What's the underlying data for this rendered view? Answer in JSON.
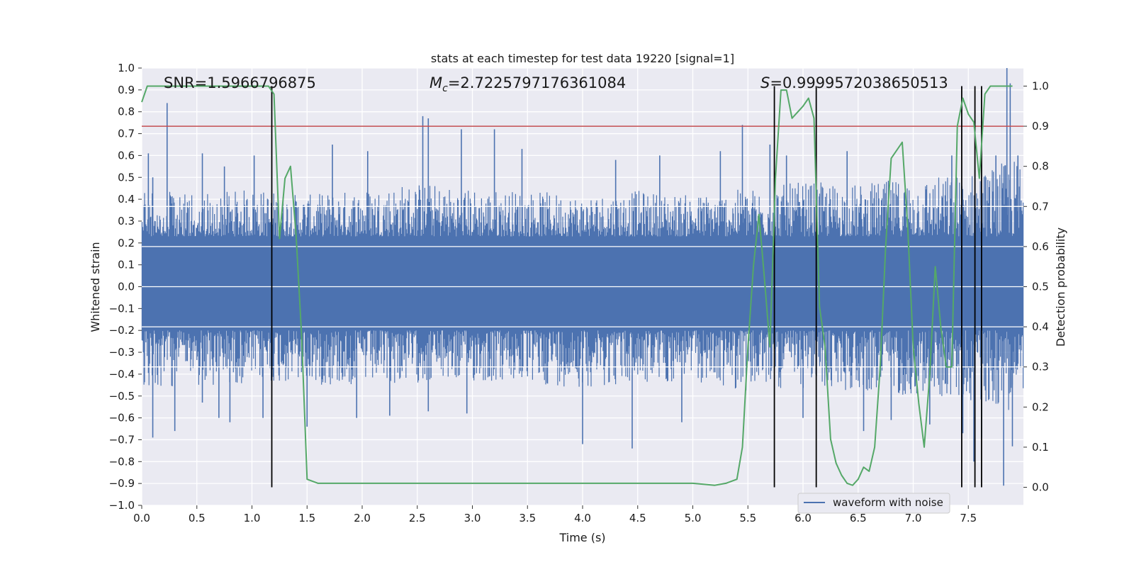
{
  "chart_data": {
    "type": "line",
    "title": "stats at each timestep for test data 19220 [signal=1]",
    "xlabel": "Time (s)",
    "ylabel": "Whitened strain",
    "y2label": "Detection probability",
    "xlim": [
      0.0,
      8.0
    ],
    "ylim": [
      -1.0,
      1.0
    ],
    "y2lim": [
      -0.045,
      1.045
    ],
    "x_ticks": [
      "0.0",
      "0.5",
      "1.0",
      "1.5",
      "2.0",
      "2.5",
      "3.0",
      "3.5",
      "4.0",
      "4.5",
      "5.0",
      "5.5",
      "6.0",
      "6.5",
      "7.0",
      "7.5"
    ],
    "y_ticks": [
      "-1.0",
      "-0.9",
      "-0.8",
      "-0.7",
      "-0.6",
      "-0.5",
      "-0.4",
      "-0.3",
      "-0.2",
      "-0.1",
      "0.0",
      "0.1",
      "0.2",
      "0.3",
      "0.4",
      "0.5",
      "0.6",
      "0.7",
      "0.8",
      "0.9",
      "1.0"
    ],
    "y2_ticks": [
      "0.0",
      "0.1",
      "0.2",
      "0.3",
      "0.4",
      "0.5",
      "0.6",
      "0.7",
      "0.8",
      "0.9",
      "1.0"
    ],
    "grid": true,
    "legend_placement": "lower-right",
    "annotations": {
      "snr": "SNR=1.5966796875",
      "mc_symbol": "M",
      "mc_sub": "c",
      "mc_value": "=2.7225797176361084",
      "s_symbol": "S",
      "s_value": "=0.9999572038650513"
    },
    "threshold": {
      "axis": "y2",
      "value": 0.9,
      "color": "#c44e52"
    },
    "vertical_lines": [
      1.18,
      5.74,
      6.12,
      7.44,
      7.56,
      7.62
    ],
    "vertical_line_color": "#000000",
    "series": [
      {
        "name": "waveform with noise",
        "axis": "y",
        "color": "#4c72b0",
        "kind": "noise-envelope",
        "envelope_x": [
          0.0,
          0.5,
          1.0,
          1.5,
          2.0,
          2.5,
          3.0,
          3.5,
          4.0,
          4.5,
          5.0,
          5.5,
          6.0,
          6.5,
          7.0,
          7.5,
          8.0
        ],
        "envelope_upper": [
          0.45,
          0.42,
          0.45,
          0.42,
          0.45,
          0.48,
          0.45,
          0.44,
          0.42,
          0.44,
          0.42,
          0.45,
          0.48,
          0.47,
          0.5,
          0.52,
          0.6
        ],
        "envelope_lower": [
          -0.45,
          -0.46,
          -0.44,
          -0.45,
          -0.46,
          -0.44,
          -0.44,
          -0.45,
          -0.46,
          -0.45,
          -0.44,
          -0.48,
          -0.47,
          -0.48,
          -0.5,
          -0.52,
          -0.58
        ],
        "spikes": [
          [
            0.06,
            0.61
          ],
          [
            0.1,
            -0.69
          ],
          [
            0.1,
            0.5
          ],
          [
            0.23,
            0.84
          ],
          [
            0.3,
            -0.66
          ],
          [
            0.55,
            -0.53
          ],
          [
            0.55,
            0.61
          ],
          [
            0.7,
            -0.6
          ],
          [
            0.75,
            0.55
          ],
          [
            0.8,
            -0.62
          ],
          [
            1.02,
            0.6
          ],
          [
            1.1,
            -0.6
          ],
          [
            1.5,
            -0.64
          ],
          [
            1.73,
            0.65
          ],
          [
            1.95,
            -0.6
          ],
          [
            2.05,
            0.62
          ],
          [
            2.25,
            -0.59
          ],
          [
            2.55,
            0.78
          ],
          [
            2.6,
            0.77
          ],
          [
            2.6,
            -0.57
          ],
          [
            2.9,
            0.72
          ],
          [
            2.95,
            -0.58
          ],
          [
            3.2,
            0.72
          ],
          [
            3.45,
            0.63
          ],
          [
            4.0,
            -0.72
          ],
          [
            4.45,
            -0.74
          ],
          [
            4.3,
            0.58
          ],
          [
            4.7,
            0.6
          ],
          [
            4.9,
            -0.62
          ],
          [
            5.25,
            0.62
          ],
          [
            5.45,
            0.74
          ],
          [
            5.7,
            0.65
          ],
          [
            5.85,
            0.6
          ],
          [
            6.0,
            -0.6
          ],
          [
            6.4,
            0.62
          ],
          [
            6.55,
            -0.66
          ],
          [
            6.8,
            -0.61
          ],
          [
            7.15,
            -0.63
          ],
          [
            7.35,
            0.6
          ],
          [
            7.45,
            -0.67
          ],
          [
            7.55,
            -0.8
          ],
          [
            7.62,
            -0.69
          ],
          [
            7.75,
            0.6
          ],
          [
            7.82,
            -0.91
          ],
          [
            7.85,
            1.0
          ],
          [
            7.88,
            0.93
          ],
          [
            7.9,
            -0.73
          ],
          [
            7.95,
            0.6
          ]
        ]
      },
      {
        "name": "",
        "axis": "y2",
        "color": "#55a868",
        "x": [
          0.0,
          0.05,
          0.1,
          0.2,
          0.3,
          0.4,
          0.5,
          0.6,
          0.7,
          0.8,
          0.9,
          1.0,
          1.05,
          1.1,
          1.15,
          1.2,
          1.25,
          1.3,
          1.35,
          1.4,
          1.45,
          1.5,
          1.6,
          1.8,
          2.0,
          2.2,
          2.5,
          3.0,
          3.5,
          4.0,
          4.5,
          5.0,
          5.2,
          5.3,
          5.4,
          5.45,
          5.5,
          5.55,
          5.6,
          5.65,
          5.7,
          5.75,
          5.8,
          5.85,
          5.9,
          6.0,
          6.05,
          6.1,
          6.15,
          6.2,
          6.25,
          6.3,
          6.35,
          6.4,
          6.45,
          6.5,
          6.55,
          6.6,
          6.65,
          6.7,
          6.75,
          6.8,
          6.9,
          6.95,
          7.0,
          7.05,
          7.1,
          7.15,
          7.2,
          7.25,
          7.3,
          7.35,
          7.4,
          7.45,
          7.5,
          7.55,
          7.6,
          7.65,
          7.7,
          7.8,
          7.9
        ],
        "y": [
          0.96,
          1.0,
          1.0,
          1.0,
          1.0,
          1.0,
          1.0,
          1.0,
          1.0,
          1.0,
          1.0,
          1.0,
          1.0,
          1.0,
          1.0,
          0.98,
          0.62,
          0.77,
          0.8,
          0.63,
          0.38,
          0.02,
          0.01,
          0.01,
          0.01,
          0.01,
          0.01,
          0.01,
          0.01,
          0.01,
          0.01,
          0.01,
          0.005,
          0.01,
          0.02,
          0.1,
          0.35,
          0.55,
          0.68,
          0.52,
          0.35,
          0.77,
          0.99,
          0.99,
          0.92,
          0.95,
          0.97,
          0.92,
          0.45,
          0.35,
          0.12,
          0.06,
          0.03,
          0.01,
          0.005,
          0.02,
          0.05,
          0.04,
          0.1,
          0.3,
          0.6,
          0.82,
          0.86,
          0.65,
          0.35,
          0.21,
          0.1,
          0.28,
          0.55,
          0.4,
          0.3,
          0.3,
          0.9,
          0.97,
          0.93,
          0.91,
          0.77,
          0.98,
          1.0,
          1.0,
          1.0
        ]
      }
    ]
  }
}
